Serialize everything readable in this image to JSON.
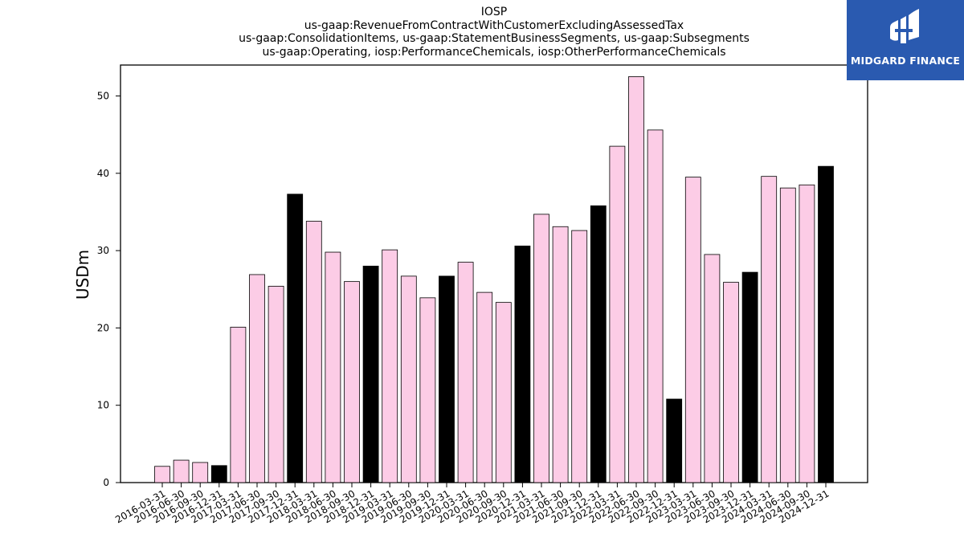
{
  "chart_data": {
    "type": "bar",
    "title_lines": [
      "IOSP",
      "us-gaap:RevenueFromContractWithCustomerExcludingAssessedTax",
      "us-gaap:ConsolidationItems, us-gaap:StatementBusinessSegments, us-gaap:Subsegments",
      "us-gaap:Operating, iosp:PerformanceChemicals, iosp:OtherPerformanceChemicals"
    ],
    "xlabel": "",
    "ylabel": "USDm",
    "ylim": [
      0,
      54
    ],
    "yticks": [
      0,
      10,
      20,
      30,
      40,
      50
    ],
    "grid": false,
    "colors": {
      "quarter": "#fccce6",
      "year_end": "#000000",
      "edge": "#000000"
    },
    "categories": [
      "2016-03-31",
      "2016-06-30",
      "2016-09-30",
      "2016-12-31",
      "2017-03-31",
      "2017-06-30",
      "2017-09-30",
      "2017-12-31",
      "2018-03-31",
      "2018-06-30",
      "2018-09-30",
      "2018-12-31",
      "2019-03-31",
      "2019-06-30",
      "2019-09-30",
      "2019-12-31",
      "2020-03-31",
      "2020-06-30",
      "2020-09-30",
      "2020-12-31",
      "2021-03-31",
      "2021-06-30",
      "2021-09-30",
      "2021-12-31",
      "2022-03-31",
      "2022-06-30",
      "2022-09-30",
      "2022-12-31",
      "2023-03-31",
      "2023-06-30",
      "2023-09-30",
      "2023-12-31",
      "2024-03-31",
      "2024-06-30",
      "2024-09-30",
      "2024-12-31"
    ],
    "values": [
      2.1,
      2.9,
      2.6,
      2.2,
      20.1,
      26.9,
      25.4,
      37.3,
      33.8,
      29.8,
      26.0,
      28.0,
      30.1,
      26.7,
      23.9,
      26.7,
      28.5,
      24.6,
      23.3,
      30.6,
      34.7,
      33.1,
      32.6,
      35.8,
      43.5,
      52.5,
      45.6,
      10.8,
      39.5,
      29.5,
      25.9,
      27.2,
      39.6,
      38.1,
      38.5,
      40.9
    ]
  },
  "logo": {
    "text": "MIDGARD FINANCE",
    "background": "#2a5ab0"
  }
}
